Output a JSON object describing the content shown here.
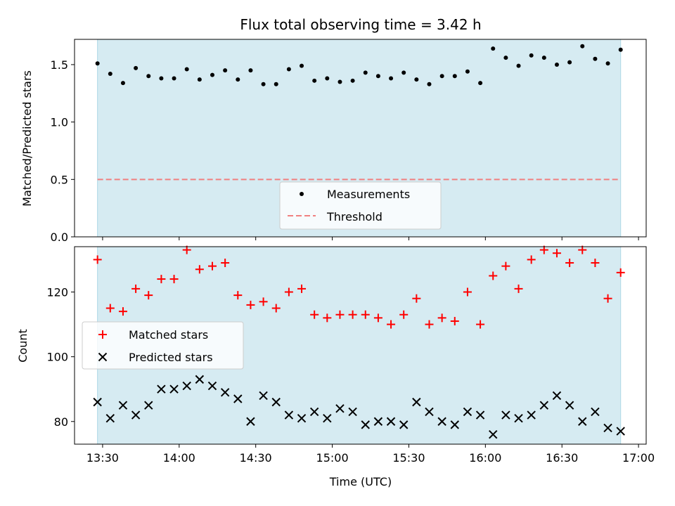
{
  "chart_data": [
    {
      "type": "scatter",
      "title": "Flux total observing time = 3.42 h",
      "xlabel": "",
      "ylabel": "Matched/Predicted stars",
      "ylim": [
        0,
        1.72
      ],
      "yticks": [
        "0.0",
        "0.5",
        "1.0",
        "1.5"
      ],
      "shaded_span": {
        "start": "13:28",
        "end": "16:53",
        "color": "#add8e6"
      },
      "threshold": {
        "name": "Threshold",
        "value": 0.5,
        "color": "#f08080"
      },
      "legend": {
        "position": "lower center",
        "entries": [
          "Measurements",
          "Threshold"
        ]
      },
      "series": [
        {
          "name": "Measurements",
          "color": "#000000",
          "x": [
            "13:28",
            "13:33",
            "13:38",
            "13:43",
            "13:48",
            "13:53",
            "13:58",
            "14:03",
            "14:08",
            "14:13",
            "14:18",
            "14:23",
            "14:28",
            "14:33",
            "14:38",
            "14:43",
            "14:48",
            "14:53",
            "14:58",
            "15:03",
            "15:08",
            "15:13",
            "15:18",
            "15:23",
            "15:28",
            "15:33",
            "15:38",
            "15:43",
            "15:48",
            "15:53",
            "15:58",
            "16:03",
            "16:08",
            "16:13",
            "16:18",
            "16:23",
            "16:28",
            "16:33",
            "16:38",
            "16:43",
            "16:48",
            "16:53"
          ],
          "y": [
            1.51,
            1.42,
            1.34,
            1.47,
            1.4,
            1.38,
            1.38,
            1.46,
            1.37,
            1.41,
            1.45,
            1.37,
            1.45,
            1.33,
            1.33,
            1.46,
            1.49,
            1.36,
            1.38,
            1.35,
            1.36,
            1.43,
            1.4,
            1.38,
            1.43,
            1.37,
            1.33,
            1.4,
            1.4,
            1.44,
            1.34,
            1.64,
            1.56,
            1.49,
            1.58,
            1.56,
            1.5,
            1.52,
            1.66,
            1.55,
            1.51,
            1.63
          ]
        }
      ]
    },
    {
      "type": "scatter",
      "title": "",
      "xlabel": "Time (UTC)",
      "ylabel": "Count",
      "ylim": [
        73,
        134
      ],
      "yticks": [
        "80",
        "100",
        "120"
      ],
      "xlim": [
        "13:19",
        "17:03"
      ],
      "xticks": [
        "13:30",
        "14:00",
        "14:30",
        "15:00",
        "15:30",
        "16:00",
        "16:30",
        "17:00"
      ],
      "shaded_span": {
        "start": "13:28",
        "end": "16:53",
        "color": "#add8e6"
      },
      "legend": {
        "position": "center left",
        "entries": [
          "Matched stars",
          "Predicted stars"
        ]
      },
      "series": [
        {
          "name": "Matched stars",
          "marker": "plus",
          "color": "#ff0000",
          "x": [
            "13:28",
            "13:33",
            "13:38",
            "13:43",
            "13:48",
            "13:53",
            "13:58",
            "14:03",
            "14:08",
            "14:13",
            "14:18",
            "14:23",
            "14:28",
            "14:33",
            "14:38",
            "14:43",
            "14:48",
            "14:53",
            "14:58",
            "15:03",
            "15:08",
            "15:13",
            "15:18",
            "15:23",
            "15:28",
            "15:33",
            "15:38",
            "15:43",
            "15:48",
            "15:53",
            "15:58",
            "16:03",
            "16:08",
            "16:13",
            "16:18",
            "16:23",
            "16:28",
            "16:33",
            "16:38",
            "16:43",
            "16:48",
            "16:53"
          ],
          "y": [
            130,
            115,
            114,
            121,
            119,
            124,
            124,
            133,
            127,
            128,
            129,
            119,
            116,
            117,
            115,
            120,
            121,
            113,
            112,
            113,
            113,
            113,
            112,
            110,
            113,
            118,
            110,
            112,
            111,
            120,
            110,
            125,
            128,
            121,
            130,
            133,
            132,
            129,
            133,
            129,
            118,
            126
          ]
        },
        {
          "name": "Predicted stars",
          "marker": "x",
          "color": "#000000",
          "x": [
            "13:28",
            "13:33",
            "13:38",
            "13:43",
            "13:48",
            "13:53",
            "13:58",
            "14:03",
            "14:08",
            "14:13",
            "14:18",
            "14:23",
            "14:28",
            "14:33",
            "14:38",
            "14:43",
            "14:48",
            "14:53",
            "14:58",
            "15:03",
            "15:08",
            "15:13",
            "15:18",
            "15:23",
            "15:28",
            "15:33",
            "15:38",
            "15:43",
            "15:48",
            "15:53",
            "15:58",
            "16:03",
            "16:08",
            "16:13",
            "16:18",
            "16:23",
            "16:28",
            "16:33",
            "16:38",
            "16:43",
            "16:48",
            "16:53"
          ],
          "y": [
            86,
            81,
            85,
            82,
            85,
            90,
            90,
            91,
            93,
            91,
            89,
            87,
            80,
            88,
            86,
            82,
            81,
            83,
            81,
            84,
            83,
            79,
            80,
            80,
            79,
            86,
            83,
            80,
            79,
            83,
            82,
            76,
            82,
            81,
            82,
            85,
            88,
            85,
            80,
            83,
            78,
            77
          ]
        }
      ]
    }
  ]
}
